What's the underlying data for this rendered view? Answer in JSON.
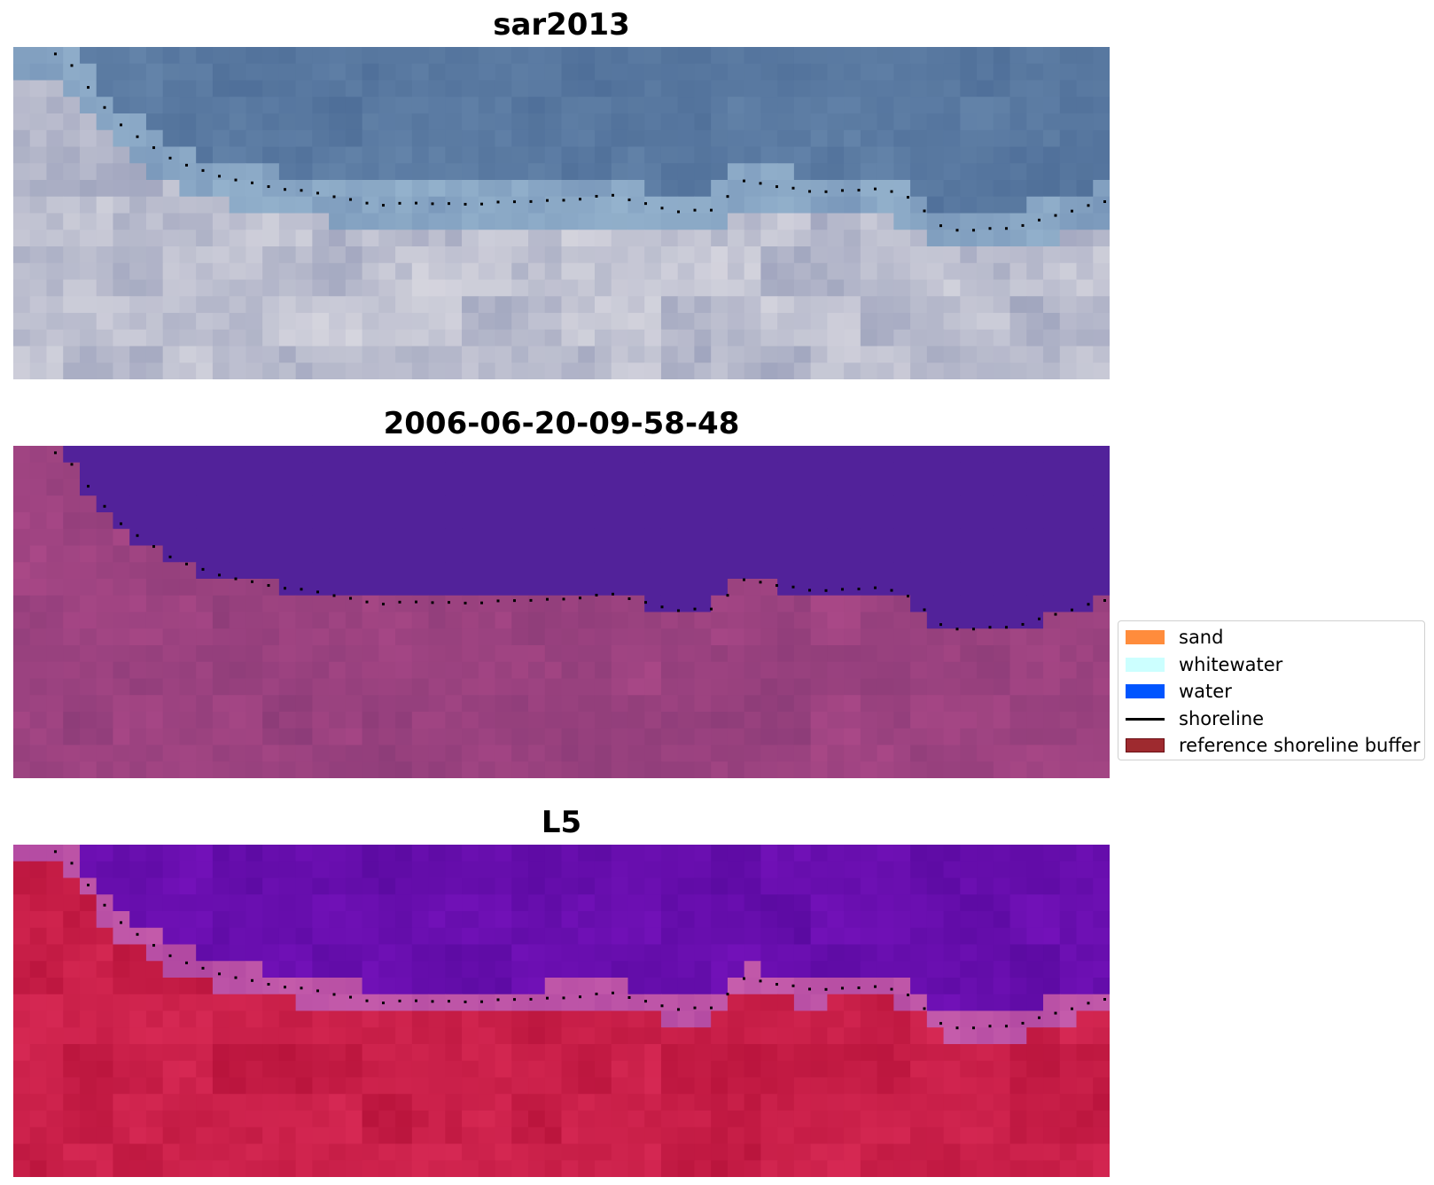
{
  "panels": [
    {
      "title": "sar2013",
      "style": "rgb"
    },
    {
      "title": "2006-06-20-09-58-48",
      "style": "classified"
    },
    {
      "title": "L5",
      "style": "index"
    }
  ],
  "legend": {
    "items": [
      {
        "label": "sand",
        "kind": "patch",
        "color": "#ff8c3c"
      },
      {
        "label": "whitewater",
        "kind": "patch",
        "color": "#ccffff"
      },
      {
        "label": "water",
        "kind": "patch",
        "color": "#0055ff"
      },
      {
        "label": "shoreline",
        "kind": "line",
        "color": "#000000"
      },
      {
        "label": "reference shoreline buffer",
        "kind": "patch",
        "color": "#9e2a2f"
      }
    ]
  },
  "colors": {
    "classified_water": "#52229a",
    "classified_land": "#a04880",
    "index_water": "#6510a4",
    "index_land": "#c01a4c",
    "shoreline_dots": "#000000"
  }
}
